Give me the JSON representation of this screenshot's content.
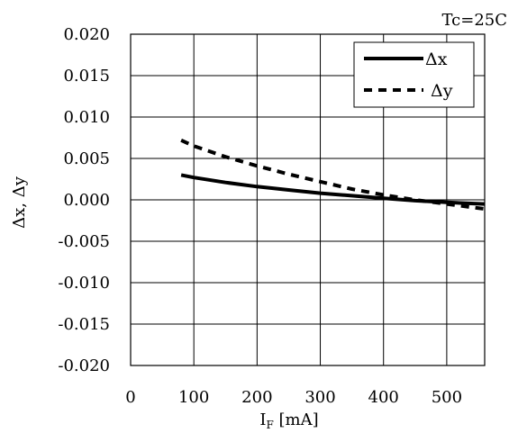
{
  "chart_data": {
    "type": "line",
    "annotation": "Tc=25C",
    "xlabel": {
      "main": "I",
      "sub": "F",
      "rest": " [mA]"
    },
    "ylabel": "Δx, Δy",
    "xlim": [
      0,
      560
    ],
    "ylim": [
      -0.02,
      0.02
    ],
    "xticks": [
      0,
      100,
      200,
      300,
      400,
      500
    ],
    "xtick_labels": [
      "0",
      "100",
      "200",
      "300",
      "400",
      "500"
    ],
    "yticks": [
      0.02,
      0.015,
      0.01,
      0.005,
      0.0,
      -0.005,
      -0.01,
      -0.015,
      -0.02
    ],
    "ytick_labels": [
      "0.020",
      "0.015",
      "0.010",
      "0.005",
      "0.000",
      "-0.005",
      "-0.010",
      "-0.015",
      "-0.020"
    ],
    "grid": true,
    "legend_position": "top-right",
    "series": [
      {
        "name": "Δx",
        "style": "solid",
        "x": [
          80,
          100,
          150,
          200,
          250,
          300,
          350,
          400,
          450,
          500,
          560
        ],
        "y": [
          0.003,
          0.0027,
          0.0021,
          0.0016,
          0.0012,
          0.0008,
          0.0005,
          0.0002,
          -0.0001,
          -0.0003,
          -0.0005
        ]
      },
      {
        "name": "Δy",
        "style": "dashed",
        "x": [
          80,
          100,
          150,
          200,
          250,
          300,
          350,
          400,
          450,
          500,
          560
        ],
        "y": [
          0.0072,
          0.0065,
          0.0052,
          0.0041,
          0.0031,
          0.0022,
          0.0013,
          0.0006,
          0.0,
          -0.0005,
          -0.0011
        ]
      }
    ]
  }
}
